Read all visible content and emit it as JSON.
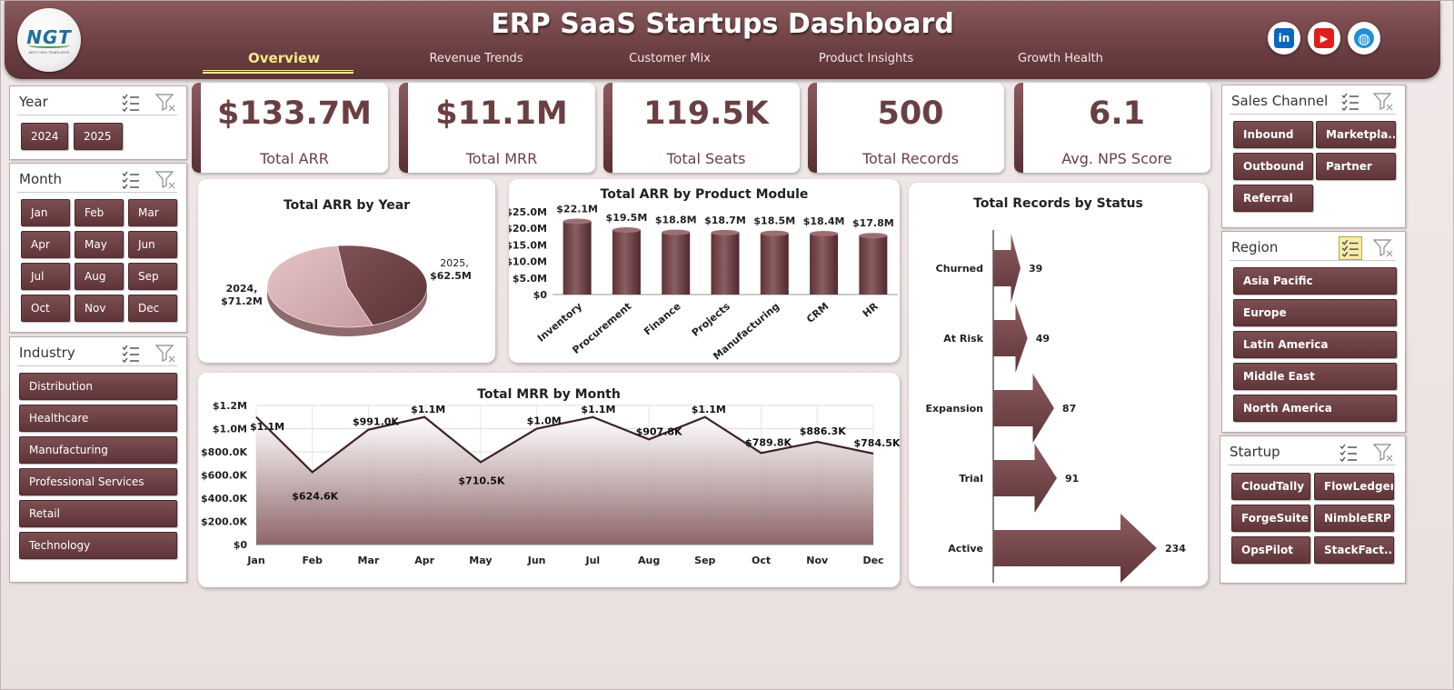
{
  "header": {
    "title": "ERP SaaS Startups Dashboard",
    "logo_text": "NGT",
    "logo_tagline": "NEXT GEN TEMPLATES",
    "tabs": [
      {
        "label": "Overview",
        "active": true
      },
      {
        "label": "Revenue Trends",
        "active": false
      },
      {
        "label": "Customer Mix",
        "active": false
      },
      {
        "label": "Product Insights",
        "active": false
      },
      {
        "label": "Growth Health",
        "active": false
      }
    ],
    "social": [
      {
        "icon": "linkedin-icon",
        "glyph": "in",
        "color": "#0a66c2"
      },
      {
        "icon": "youtube-icon",
        "glyph": "▶",
        "color": "#e01e1e"
      },
      {
        "icon": "website-globe-icon",
        "glyph": "◍",
        "color": "#1f8fd6"
      }
    ]
  },
  "slicers": {
    "year": {
      "title": "Year",
      "items": [
        "2024",
        "2025"
      ]
    },
    "month": {
      "title": "Month",
      "items": [
        "Jan",
        "Feb",
        "Mar",
        "Apr",
        "May",
        "Jun",
        "Jul",
        "Aug",
        "Sep",
        "Oct",
        "Nov",
        "Dec"
      ]
    },
    "industry": {
      "title": "Industry",
      "items": [
        "Distribution",
        "Healthcare",
        "Manufacturing",
        "Professional Services",
        "Retail",
        "Technology"
      ]
    },
    "sales_channel": {
      "title": "Sales Channel",
      "items": [
        "Inbound",
        "Marketpla...",
        "Outbound",
        "Partner",
        "Referral"
      ]
    },
    "region": {
      "title": "Region",
      "items": [
        "Asia Pacific",
        "Europe",
        "Latin America",
        "Middle East",
        "North America"
      ]
    },
    "startup": {
      "title": "Startup",
      "items": [
        "CloudTally",
        "FlowLedger",
        "ForgeSuite",
        "NimbleERP",
        "OpsPilot",
        "StackFact..."
      ]
    }
  },
  "kpis": [
    {
      "value": "$133.7M",
      "label": "Total ARR"
    },
    {
      "value": "$11.1M",
      "label": "Total MRR"
    },
    {
      "value": "119.5K",
      "label": "Total Seats"
    },
    {
      "value": "500",
      "label": "Total Records"
    },
    {
      "value": "6.1",
      "label": "Avg. NPS Score"
    }
  ],
  "colors": {
    "brand": "#6e4144",
    "accent_tab": "#f7e98d",
    "chip": "#603538",
    "pie_light": "#d9b3b5",
    "pie_dark": "#6e4144"
  },
  "chart_data": [
    {
      "id": "arr_by_year",
      "type": "pie",
      "title": "Total ARR by Year",
      "slices": [
        {
          "label": "2024",
          "value": 71.2,
          "display": "$71.2M"
        },
        {
          "label": "2025",
          "value": 62.5,
          "display": "$62.5M"
        }
      ]
    },
    {
      "id": "arr_by_module",
      "type": "bar",
      "title": "Total ARR by Product Module",
      "categories": [
        "Inventory",
        "Procurement",
        "Finance",
        "Projects",
        "Manufacturing",
        "CRM",
        "HR"
      ],
      "values": [
        22.1,
        19.5,
        18.8,
        18.7,
        18.5,
        18.4,
        17.8
      ],
      "data_labels": [
        "$22.1M",
        "$19.5M",
        "$18.8M",
        "$18.7M",
        "$18.5M",
        "$18.4M",
        "$17.8M"
      ],
      "yticks": [
        "$0",
        "$5.0M",
        "$10.0M",
        "$15.0M",
        "$20.0M",
        "$25.0M"
      ],
      "ylim": [
        0,
        25
      ]
    },
    {
      "id": "mrr_by_month",
      "type": "area",
      "title": "Total MRR by Month",
      "categories": [
        "Jan",
        "Feb",
        "Mar",
        "Apr",
        "May",
        "Jun",
        "Jul",
        "Aug",
        "Sep",
        "Oct",
        "Nov",
        "Dec"
      ],
      "values": [
        1.1,
        0.6246,
        0.991,
        1.1,
        0.7105,
        1.0,
        1.1,
        0.9078,
        1.1,
        0.7898,
        0.8863,
        0.7845
      ],
      "data_labels": [
        "$1.1M",
        "$624.6K",
        "$991.0K",
        "$1.1M",
        "$710.5K",
        "$1.0M",
        "$1.1M",
        "$907.8K",
        "$1.1M",
        "$789.8K",
        "$886.3K",
        "$784.5K"
      ],
      "yticks": [
        "$0",
        "$200.0K",
        "$400.0K",
        "$600.0K",
        "$800.0K",
        "$1.0M",
        "$1.2M"
      ],
      "ylim": [
        0,
        1.2
      ],
      "grid": true
    },
    {
      "id": "records_by_status",
      "type": "bar",
      "orientation": "horizontal",
      "title": "Total Records by Status",
      "categories": [
        "Churned",
        "At Risk",
        "Expansion",
        "Trial",
        "Active"
      ],
      "values": [
        39,
        49,
        87,
        91,
        234
      ]
    }
  ]
}
